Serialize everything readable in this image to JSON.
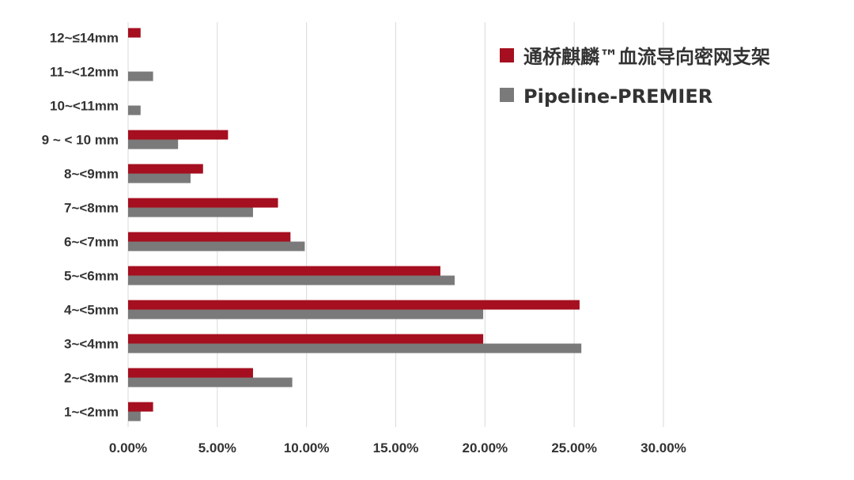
{
  "chart_data": {
    "type": "bar",
    "orientation": "horizontal",
    "categories": [
      "12~≤14mm",
      "11~<12mm",
      "10~<11mm",
      "9 ~ < 10 mm",
      "8~<9mm",
      "7~<8mm",
      "6~<7mm",
      "5~<6mm",
      "4~<5mm",
      "3~<4mm",
      "2~<3mm",
      "1~<2mm"
    ],
    "series": [
      {
        "name": "通桥麒麟™血流导向密网支架",
        "color": "#a50f1f",
        "values": [
          0.7,
          0.0,
          0.0,
          5.6,
          4.2,
          8.4,
          9.1,
          17.5,
          25.3,
          19.9,
          7.0,
          1.4
        ]
      },
      {
        "name": "Pipeline-PREMIER",
        "color": "#7a7a7a",
        "values": [
          0.0,
          1.4,
          0.7,
          2.8,
          3.5,
          7.0,
          9.9,
          18.3,
          19.9,
          25.4,
          9.2,
          0.7
        ]
      }
    ],
    "x_ticks": [
      "0.00%",
      "5.00%",
      "10.00%",
      "15.00%",
      "20.00%",
      "25.00%",
      "30.00%"
    ],
    "xlim": [
      0,
      30
    ],
    "grid": "vertical",
    "legend_position": "top-right",
    "title": "",
    "xlabel": "",
    "ylabel": ""
  },
  "legend": {
    "items": [
      {
        "label": "通桥麒麟™血流导向密网支架"
      },
      {
        "label": "Pipeline-PREMIER"
      }
    ]
  }
}
